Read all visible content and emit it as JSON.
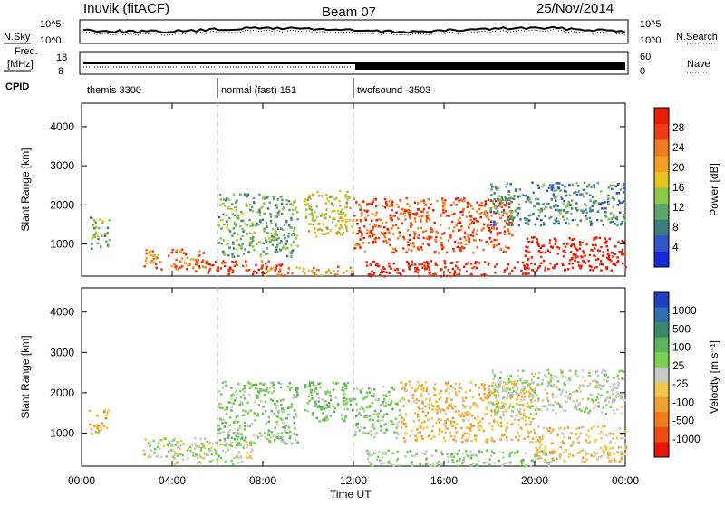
{
  "header": {
    "station": "Inuvik (fitACF)",
    "beam": "Beam 07",
    "date": "25/Nov/2014"
  },
  "panels": {
    "noise_left_label": "N.Sky",
    "noise_left_ticks": [
      "10^5",
      "10^0"
    ],
    "noise_right_ticks": [
      "10^5",
      "10^0"
    ],
    "noise_right_label": "N.Search",
    "freq_label_line1": "Freq.",
    "freq_label_line2": "[MHz]",
    "freq_ticks": [
      "18",
      "8"
    ],
    "nave_ticks": [
      "60",
      "0"
    ],
    "nave_label": "Nave",
    "cpid_label": "CPID",
    "cpid_segments": [
      {
        "label": "themis 3300",
        "start_hour": 0
      },
      {
        "label": "normal (fast) 151",
        "start_hour": 6
      },
      {
        "label": "twofsound -3503",
        "start_hour": 12
      }
    ]
  },
  "chart_data": [
    {
      "type": "heatmap",
      "title": "",
      "xlabel": "Time UT",
      "ylabel": "Slant Range [km]",
      "xlim_hours": [
        0,
        24
      ],
      "ylim_km": [
        180,
        4600
      ],
      "x_ticks": [
        "00:00",
        "04:00",
        "08:00",
        "12:00",
        "16:00",
        "20:00",
        "00:00"
      ],
      "y_ticks": [
        1000,
        2000,
        3000,
        4000
      ],
      "colorbar": {
        "label": "Power [dB]",
        "ticks": [
          "4",
          "8",
          "12",
          "16",
          "20",
          "24",
          "28"
        ],
        "colors": [
          "#1428d8",
          "#2f55c8",
          "#3d7d7d",
          "#5fa468",
          "#8cc84a",
          "#e6c31e",
          "#f0a023",
          "#f07a1e",
          "#ee3c14",
          "#e61e0a"
        ]
      },
      "regions": [
        {
          "t0": 0.3,
          "t1": 1.2,
          "r0": 900,
          "r1": 1700,
          "value": 14
        },
        {
          "t0": 2.7,
          "t1": 5.5,
          "r0": 380,
          "r1": 900,
          "value": 22
        },
        {
          "t0": 5.0,
          "t1": 9.0,
          "r0": 250,
          "r1": 600,
          "value": 26
        },
        {
          "t0": 6.0,
          "t1": 9.5,
          "r0": 700,
          "r1": 2300,
          "value": 13
        },
        {
          "t0": 8.0,
          "t1": 12.0,
          "r0": 200,
          "r1": 450,
          "value": 20
        },
        {
          "t0": 9.8,
          "t1": 12.0,
          "r0": 1200,
          "r1": 2400,
          "value": 17
        },
        {
          "t0": 12.0,
          "t1": 19.0,
          "r0": 800,
          "r1": 2200,
          "value": 24
        },
        {
          "t0": 12.5,
          "t1": 20.0,
          "r0": 200,
          "r1": 600,
          "value": 27
        },
        {
          "t0": 18.0,
          "t1": 24.0,
          "r0": 1500,
          "r1": 2600,
          "value": 11
        },
        {
          "t0": 19.5,
          "t1": 24.0,
          "r0": 350,
          "r1": 1200,
          "value": 29
        }
      ]
    },
    {
      "type": "heatmap",
      "title": "",
      "xlabel": "Time UT",
      "ylabel": "Slant Range [km]",
      "xlim_hours": [
        0,
        24
      ],
      "ylim_km": [
        180,
        4600
      ],
      "x_ticks": [
        "00:00",
        "04:00",
        "08:00",
        "12:00",
        "16:00",
        "20:00",
        "00:00"
      ],
      "y_ticks": [
        1000,
        2000,
        3000,
        4000
      ],
      "colorbar": {
        "label": "Velocity [m s⁻¹]",
        "ticks": [
          "1000",
          "500",
          "100",
          "25",
          "-25",
          "-100",
          "-500",
          "-1000"
        ],
        "colors": [
          "#1f3fbf",
          "#2e6fae",
          "#3a8a6a",
          "#5fb35a",
          "#78d24f",
          "#c8c8c8",
          "#f2c84b",
          "#f0a030",
          "#f07a1e",
          "#ee4a14",
          "#e6140a"
        ]
      },
      "regions": [
        {
          "t0": 0.3,
          "t1": 1.2,
          "r0": 1000,
          "r1": 1600,
          "value": -300
        },
        {
          "t0": 2.7,
          "t1": 5.5,
          "r0": 400,
          "r1": 900,
          "value": 60
        },
        {
          "t0": 4.0,
          "t1": 7.5,
          "r0": 250,
          "r1": 800,
          "value": 0
        },
        {
          "t0": 6.0,
          "t1": 9.5,
          "r0": 700,
          "r1": 2300,
          "value": 200
        },
        {
          "t0": 9.8,
          "t1": 12.0,
          "r0": 1300,
          "r1": 2300,
          "value": 220
        },
        {
          "t0": 12.0,
          "t1": 14.0,
          "r0": 900,
          "r1": 2200,
          "value": 180
        },
        {
          "t0": 14.0,
          "t1": 20.0,
          "r0": 800,
          "r1": 2300,
          "value": -250
        },
        {
          "t0": 12.5,
          "t1": 21.0,
          "r0": 200,
          "r1": 600,
          "value": 120
        },
        {
          "t0": 18.0,
          "t1": 24.0,
          "r0": 1500,
          "r1": 2600,
          "value": 80
        },
        {
          "t0": 20.0,
          "t1": 24.0,
          "r0": 300,
          "r1": 1200,
          "value": -200
        }
      ]
    }
  ]
}
